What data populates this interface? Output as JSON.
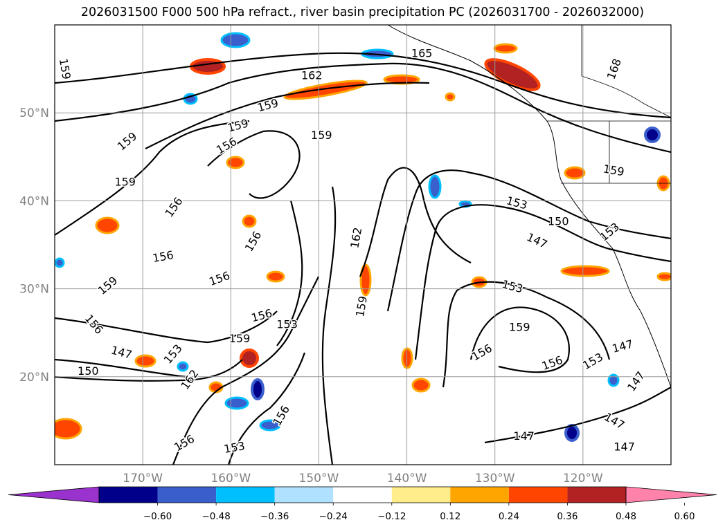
{
  "title": "2026031500 F000 500 hPa refract., river basin precipitation PC (2026031700 - 2026032000)",
  "map": {
    "lon_range": [
      -180,
      -110
    ],
    "lat_range": [
      10,
      60
    ],
    "lat_ticks": [
      {
        "value": 20,
        "label": "20°N"
      },
      {
        "value": 30,
        "label": "30°N"
      },
      {
        "value": 40,
        "label": "40°N"
      },
      {
        "value": 50,
        "label": "50°N"
      }
    ],
    "lon_ticks": [
      {
        "value": -170,
        "label": "170°W"
      },
      {
        "value": -160,
        "label": "160°W"
      },
      {
        "value": -150,
        "label": "150°W"
      },
      {
        "value": -140,
        "label": "140°W"
      },
      {
        "value": -130,
        "label": "130°W"
      },
      {
        "value": -120,
        "label": "120°W"
      }
    ],
    "grid": true
  },
  "colorbar": {
    "colors": [
      "#9a32cd",
      "#00008b",
      "#3a5fcd",
      "#00bfff",
      "#b0e2ff",
      "#ffffff",
      "#ffec8b",
      "#ffa500",
      "#ff4500",
      "#b22222",
      "#ff82ab"
    ],
    "under_color": "#9a32cd",
    "over_color": "#ff82ab",
    "labels": [
      "−0.60",
      "−0.48",
      "−0.36",
      "−0.24",
      "−0.12",
      "0.12",
      "0.24",
      "0.36",
      "0.48",
      "0.60"
    ]
  },
  "contour_labels": [
    {
      "text": "165",
      "lon": -138.3,
      "lat": 56.8,
      "rot": 0
    },
    {
      "text": "162",
      "lon": -150.8,
      "lat": 54.3,
      "rot": 0
    },
    {
      "text": "168",
      "lon": -116.5,
      "lat": 55.0,
      "rot": -70
    },
    {
      "text": "159",
      "lon": -178.8,
      "lat": 55.0,
      "rot": 80
    },
    {
      "text": "159",
      "lon": -155.8,
      "lat": 50.9,
      "rot": -15
    },
    {
      "text": "159",
      "lon": -159.2,
      "lat": 48.6,
      "rot": -15
    },
    {
      "text": "159",
      "lon": -149.7,
      "lat": 47.5,
      "rot": 0
    },
    {
      "text": "159",
      "lon": -171.8,
      "lat": 46.8,
      "rot": -40
    },
    {
      "text": "156",
      "lon": -160.5,
      "lat": 46.3,
      "rot": -30
    },
    {
      "text": "159",
      "lon": -172.0,
      "lat": 42.2,
      "rot": 0
    },
    {
      "text": "156",
      "lon": -166.5,
      "lat": 39.3,
      "rot": -55
    },
    {
      "text": "156",
      "lon": -157.5,
      "lat": 35.4,
      "rot": -60
    },
    {
      "text": "162",
      "lon": -145.8,
      "lat": 35.8,
      "rot": -80
    },
    {
      "text": "153",
      "lon": -127.5,
      "lat": 39.8,
      "rot": 15
    },
    {
      "text": "150",
      "lon": -122.8,
      "lat": 37.7,
      "rot": 0
    },
    {
      "text": "147",
      "lon": -125.2,
      "lat": 35.5,
      "rot": 25
    },
    {
      "text": "156",
      "lon": -167.7,
      "lat": 33.7,
      "rot": -10
    },
    {
      "text": "156",
      "lon": -161.3,
      "lat": 31.2,
      "rot": -20
    },
    {
      "text": "159",
      "lon": -174.0,
      "lat": 30.4,
      "rot": -40
    },
    {
      "text": "153",
      "lon": -128.0,
      "lat": 30.3,
      "rot": 15
    },
    {
      "text": "153",
      "lon": -117.0,
      "lat": 36.5,
      "rot": -40
    },
    {
      "text": "159",
      "lon": -116.5,
      "lat": 43.5,
      "rot": 10
    },
    {
      "text": "159",
      "lon": -145.2,
      "lat": 28.0,
      "rot": -80
    },
    {
      "text": "156",
      "lon": -156.5,
      "lat": 27.0,
      "rot": -15
    },
    {
      "text": "153",
      "lon": -153.6,
      "lat": 26.0,
      "rot": 0
    },
    {
      "text": "156",
      "lon": -175.5,
      "lat": 26.0,
      "rot": 50
    },
    {
      "text": "159",
      "lon": -127.2,
      "lat": 25.7,
      "rot": 0
    },
    {
      "text": "159",
      "lon": -159.0,
      "lat": 24.4,
      "rot": 0
    },
    {
      "text": "147",
      "lon": -172.4,
      "lat": 22.8,
      "rot": 15
    },
    {
      "text": "156",
      "lon": -131.5,
      "lat": 22.8,
      "rot": -30
    },
    {
      "text": "153",
      "lon": -166.6,
      "lat": 22.6,
      "rot": -50
    },
    {
      "text": "147",
      "lon": -115.5,
      "lat": 23.5,
      "rot": -15
    },
    {
      "text": "156",
      "lon": -123.5,
      "lat": 21.6,
      "rot": -20
    },
    {
      "text": "153",
      "lon": -118.9,
      "lat": 21.8,
      "rot": -30
    },
    {
      "text": "150",
      "lon": -176.2,
      "lat": 20.7,
      "rot": 0
    },
    {
      "text": "147",
      "lon": -114.0,
      "lat": 19.5,
      "rot": -55
    },
    {
      "text": "162",
      "lon": -164.7,
      "lat": 19.7,
      "rot": -55
    },
    {
      "text": "156",
      "lon": -154.3,
      "lat": 15.6,
      "rot": -60
    },
    {
      "text": "147",
      "lon": -116.4,
      "lat": 15.0,
      "rot": 30
    },
    {
      "text": "147",
      "lon": -126.7,
      "lat": 13.3,
      "rot": 0
    },
    {
      "text": "156",
      "lon": -165.3,
      "lat": 12.5,
      "rot": -30
    },
    {
      "text": "153",
      "lon": -159.6,
      "lat": 12.0,
      "rot": -10
    },
    {
      "text": "147",
      "lon": -115.3,
      "lat": 12.1,
      "rot": 0
    }
  ]
}
